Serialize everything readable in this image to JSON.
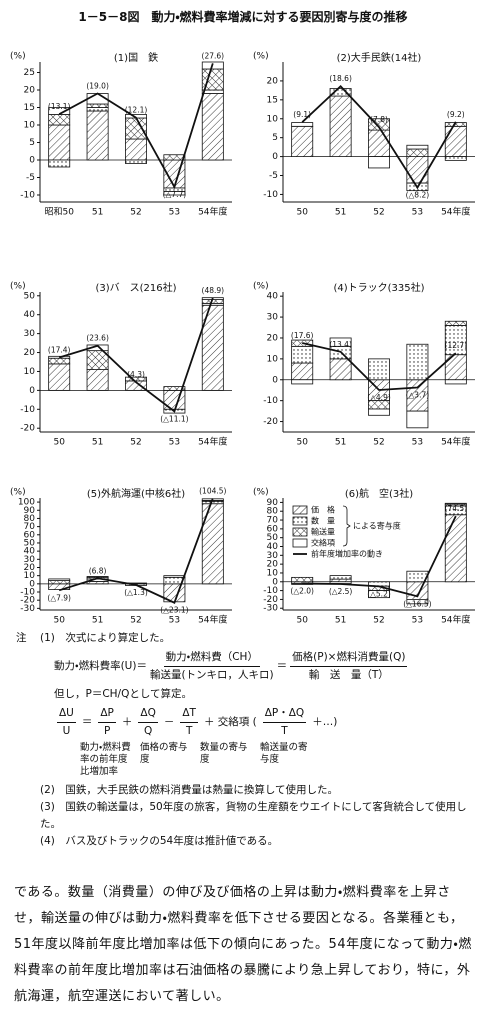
{
  "document": {
    "title": "1－5－8図　動力・燃料費率増減に対する要因別寄与度の推移",
    "notes": {
      "lead": "注",
      "n1": "(1)　次式により算定した。",
      "f1": {
        "lhs": "動力・燃料費率(U)",
        "eq": "＝",
        "num1": "動力・燃料費（CH）",
        "den1": "輸送量(トンキロ，人キロ)",
        "num2": "価格(P)×燃料消費量(Q)",
        "den2": "輸　送　量（T）"
      },
      "proviso": "但し，P＝CH/Qとして算定。",
      "f2": [
        {
          "num": "ΔU",
          "den": "U"
        },
        {
          "text": "＝"
        },
        {
          "num": "ΔP",
          "den": "P"
        },
        {
          "text": "＋"
        },
        {
          "num": "ΔQ",
          "den": "Q"
        },
        {
          "text": "－"
        },
        {
          "num": "ΔT",
          "den": "T"
        },
        {
          "text": "＋ 交絡項 ("
        },
        {
          "num": "ΔP・ΔQ",
          "den": "T"
        },
        {
          "text": "＋…)"
        }
      ],
      "f2_labels": [
        "動力・燃料費率の前年度比増加率",
        "価格の寄与度",
        "数量の寄与度",
        "輸送量の寄与度"
      ],
      "n2": "(2)　国鉄，大手民鉄の燃料消費量は熱量に換算して使用した。",
      "n3": "(3)　国鉄の輸送量は，50年度の旅客，貨物の生産額をウエイトにして客貨統合して使用した。",
      "n4": "(4)　バス及びトラックの54年度は推計値である。"
    },
    "body": "である。数量（消費量）の伸び及び価格の上昇は動力・燃料費率を上昇させ，輸送量の伸びは動力・燃料費率を低下させる要因となる。各業種とも，51年度以降前年度比増加率は低下の傾向にあった。54年度になって動力・燃料費率の前年度比増加率は石油価格の暴騰により急上昇しており，特に，外航海運，航空運送において著しい。"
  },
  "chart_data": [
    {
      "type": "bar",
      "stacked": true,
      "title": "(1)国　鉄",
      "unit": "(%)",
      "categories": [
        "昭和50",
        "51",
        "52",
        "53",
        "54年度"
      ],
      "ylim": [
        -12,
        28
      ],
      "yticks": [
        25,
        20,
        15,
        10,
        5,
        0,
        -5,
        -10
      ],
      "series": [
        {
          "pattern": "hatch",
          "values": [
            10,
            14,
            6,
            -8,
            19
          ]
        },
        {
          "pattern": "dots",
          "values": [
            -2,
            1,
            -1,
            -1,
            1
          ]
        },
        {
          "pattern": "cross",
          "values": [
            3,
            1,
            6,
            1.5,
            6
          ]
        },
        {
          "pattern": "none",
          "values": [
            2,
            3,
            1,
            -1,
            2
          ]
        }
      ],
      "line": {
        "values": [
          13.1,
          19.0,
          12.1,
          -7.7,
          27.6
        ],
        "value_labels": [
          "(13.1)",
          "(19.0)",
          "(12.1)",
          "(△7.7)",
          "(27.6)"
        ]
      }
    },
    {
      "type": "bar",
      "stacked": true,
      "title": "(2)大手民鉄(14社)",
      "unit": "(%)",
      "categories": [
        "50",
        "51",
        "52",
        "53",
        "54年度"
      ],
      "ylim": [
        -12,
        25
      ],
      "yticks": [
        20,
        15,
        10,
        5,
        0,
        -5,
        -10
      ],
      "series": [
        {
          "pattern": "hatch",
          "values": [
            8,
            16,
            7,
            -7,
            8
          ]
        },
        {
          "pattern": "dots",
          "values": [
            0,
            2,
            0,
            -2,
            -1
          ]
        },
        {
          "pattern": "cross",
          "values": [
            0,
            0,
            3,
            2,
            1
          ]
        },
        {
          "pattern": "none",
          "values": [
            1,
            0,
            -3,
            1,
            0
          ]
        }
      ],
      "line": {
        "values": [
          9.1,
          18.6,
          7.8,
          -8.2,
          9.2
        ],
        "value_labels": [
          "(9.1)",
          "(18.6)",
          "(7.8)",
          "(△8.2)",
          "(9.2)"
        ]
      }
    },
    {
      "type": "bar",
      "stacked": true,
      "title": "(3)バ　ス(216社)",
      "unit": "(%)",
      "categories": [
        "50",
        "51",
        "52",
        "53",
        "54年度"
      ],
      "ylim": [
        -22,
        52
      ],
      "yticks": [
        50,
        40,
        30,
        20,
        10,
        0,
        -10,
        -20
      ],
      "series": [
        {
          "pattern": "hatch",
          "values": [
            14,
            11,
            5,
            -10,
            45
          ]
        },
        {
          "pattern": "dots",
          "values": [
            0,
            0,
            0,
            -2,
            1
          ]
        },
        {
          "pattern": "cross",
          "values": [
            3,
            10,
            2,
            2,
            2
          ]
        },
        {
          "pattern": "none",
          "values": [
            1,
            3,
            0,
            0,
            1
          ]
        }
      ],
      "line": {
        "values": [
          17.4,
          23.6,
          4.3,
          -11.1,
          48.9
        ],
        "value_labels": [
          "(17.4)",
          "(23.6)",
          "(4.3)",
          "(△11.1)",
          "(48.9)"
        ]
      }
    },
    {
      "type": "bar",
      "stacked": true,
      "title": "(4)トラック(335社)",
      "unit": "(%)",
      "categories": [
        "50",
        "51",
        "52",
        "53",
        "54年度"
      ],
      "ylim": [
        -25,
        42
      ],
      "yticks": [
        40,
        30,
        20,
        10,
        0,
        -10,
        -20
      ],
      "series": [
        {
          "pattern": "hatch",
          "values": [
            8,
            10,
            -10,
            -15,
            12
          ]
        },
        {
          "pattern": "dots",
          "values": [
            8,
            6,
            10,
            17,
            14
          ]
        },
        {
          "pattern": "cross",
          "values": [
            3,
            0,
            -4,
            0,
            2
          ]
        },
        {
          "pattern": "none",
          "values": [
            -2,
            4,
            -3,
            -8,
            -2
          ]
        }
      ],
      "line": {
        "values": [
          17.6,
          13.4,
          -4.9,
          -3.7,
          12.7
        ],
        "value_labels": [
          "(17.6)",
          "(13.4)",
          "(△4.9)",
          "(△3.7)",
          "(12.7)"
        ]
      }
    },
    {
      "type": "bar",
      "stacked": true,
      "title": "(5)外航海運(中核6社)",
      "unit": "(%)",
      "categories": [
        "50",
        "51",
        "52",
        "53",
        "54年度"
      ],
      "ylim": [
        -32,
        105
      ],
      "yticks": [
        100,
        90,
        80,
        70,
        60,
        50,
        40,
        30,
        20,
        10,
        0,
        -10,
        -20,
        -30
      ],
      "series": [
        {
          "pattern": "hatch",
          "values": [
            -7,
            3,
            -2,
            -22,
            98
          ]
        },
        {
          "pattern": "dots",
          "values": [
            0,
            3,
            0,
            8,
            3
          ]
        },
        {
          "pattern": "cross",
          "values": [
            4,
            2,
            1,
            0,
            1
          ]
        },
        {
          "pattern": "none",
          "values": [
            2,
            1,
            0,
            2,
            2
          ]
        }
      ],
      "line": {
        "values": [
          -7.9,
          6.8,
          -1.3,
          -23.1,
          104.5
        ],
        "value_labels": [
          "(△7.9)",
          "(6.8)",
          "(△1.3)",
          "(△23.1)",
          "(104.5)"
        ]
      }
    },
    {
      "type": "bar",
      "stacked": true,
      "title": "(6)航　空(3社)",
      "unit": "(%)",
      "categories": [
        "50",
        "51",
        "52",
        "53",
        "54年度"
      ],
      "ylim": [
        -32,
        95
      ],
      "yticks": [
        90,
        80,
        70,
        60,
        50,
        40,
        30,
        20,
        10,
        0,
        -10,
        -20,
        -30
      ],
      "legend_note": "による寄与度",
      "series": [
        {
          "name": "価　格",
          "pattern": "hatch",
          "values": [
            -2,
            3,
            0,
            -20,
            76
          ]
        },
        {
          "name": "数　量",
          "pattern": "dots",
          "values": [
            0,
            4,
            -5,
            12,
            10
          ]
        },
        {
          "name": "輸送量",
          "pattern": "cross",
          "values": [
            5,
            0,
            -5,
            0,
            2
          ]
        },
        {
          "name": "交絡項",
          "pattern": "none",
          "values": [
            -1,
            -2,
            -8,
            -5,
            1
          ]
        }
      ],
      "line": {
        "name": "前年度増加率の動き",
        "values": [
          -2.0,
          -2.5,
          -5.2,
          -16.5,
          74.5
        ],
        "value_labels": [
          "(△2.0)",
          "(△2.5)",
          "(△5.2)",
          "(△16.5)",
          "(74.5)"
        ]
      }
    }
  ]
}
